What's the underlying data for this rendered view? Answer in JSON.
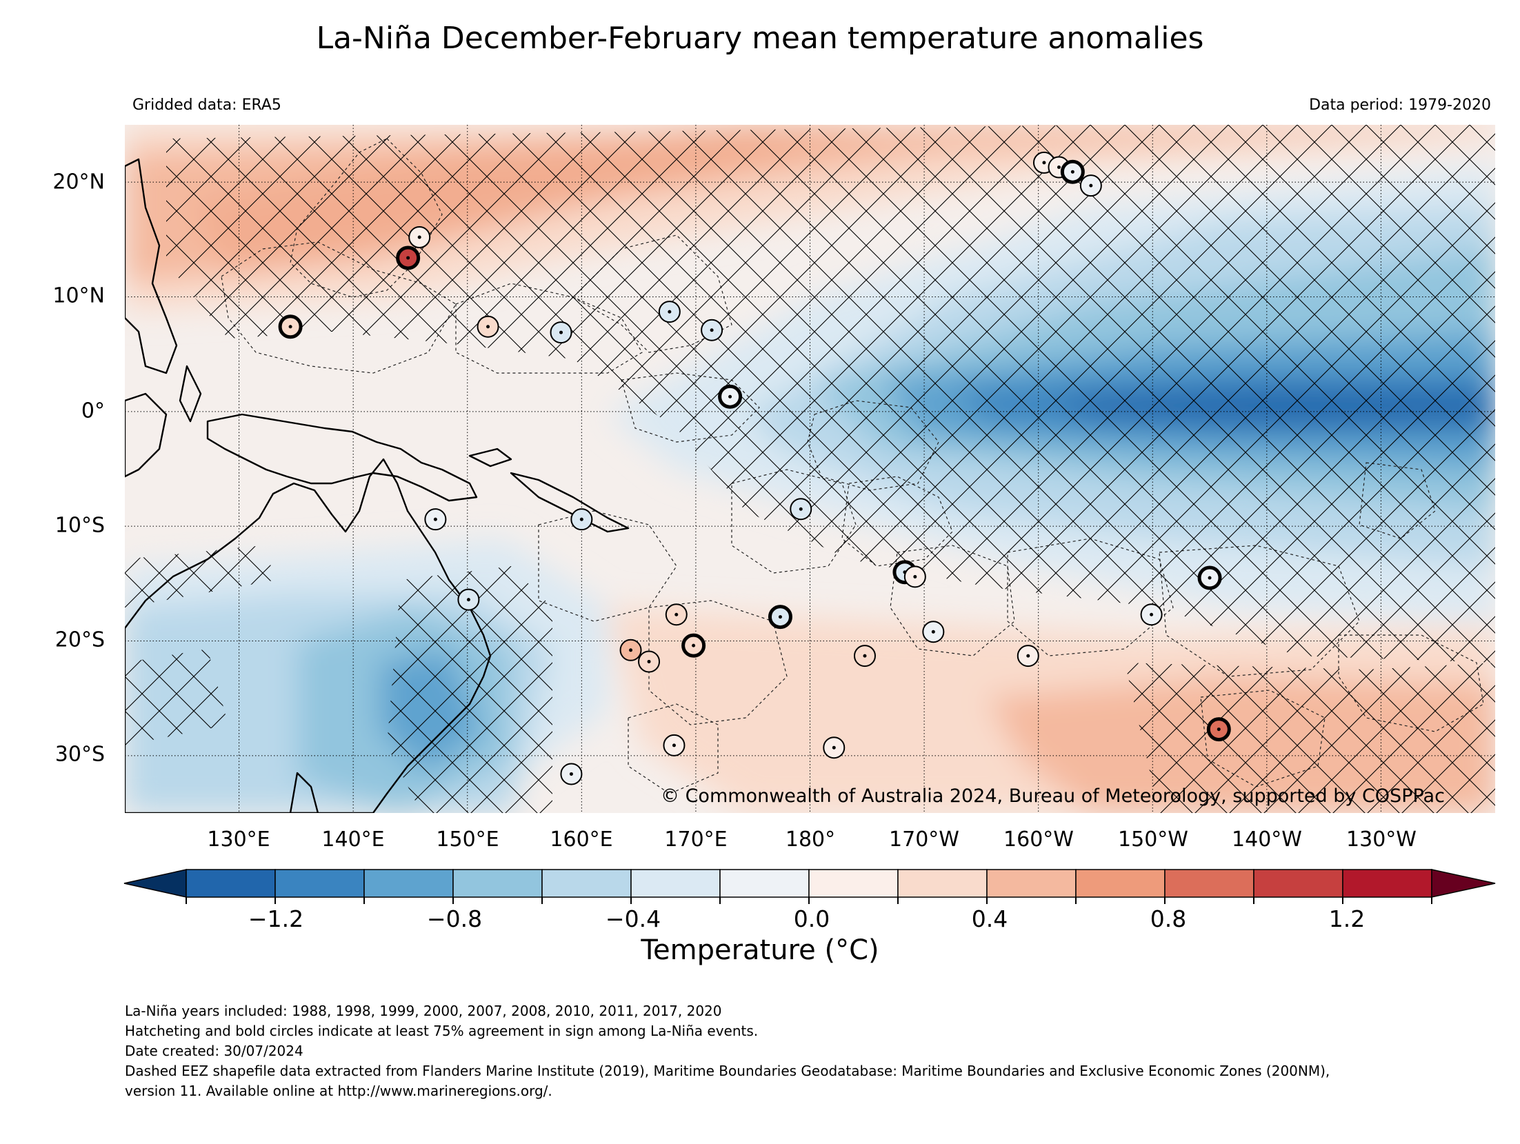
{
  "title": "La-Niña December-February mean temperature anomalies",
  "gridded_data": "Gridded data: ERA5",
  "data_period": "Data period: 1979-2020",
  "copyright": "© Commonwealth of Australia 2024, Bureau of Meteorology, supported by COSPPac",
  "lat_labels": [
    "20°N",
    "10°N",
    "0°",
    "10°S",
    "20°S",
    "30°S"
  ],
  "lon_labels": [
    "130°E",
    "140°E",
    "150°E",
    "160°E",
    "170°E",
    "180°",
    "170°W",
    "160°W",
    "150°W",
    "140°W",
    "130°W"
  ],
  "colorbar": {
    "title": "Temperature (°C)",
    "tick_labels": [
      "−1.2",
      "−0.8",
      "−0.4",
      "0.0",
      "0.4",
      "0.8",
      "1.2"
    ],
    "levels": [
      -1.4,
      -1.2,
      -1.0,
      -0.8,
      -0.6,
      -0.4,
      -0.2,
      0.0,
      0.2,
      0.4,
      0.6,
      0.8,
      1.0,
      1.2,
      1.4
    ],
    "colors": [
      "#053061",
      "#2166ac",
      "#3a84c0",
      "#5ea3cf",
      "#92c5de",
      "#b9d8ea",
      "#dbe9f3",
      "#eef2f6",
      "#fbefea",
      "#f9dbcc",
      "#f4b99f",
      "#ee9b7b",
      "#dc6e5a",
      "#c6403f",
      "#b2182b",
      "#67001f"
    ]
  },
  "map": {
    "region": {
      "lon_min": 120,
      "lon_max": 240,
      "lat_min": -35,
      "lat_max": 25
    },
    "colors": {
      "land_outline": "#000000",
      "hatching": "#000000",
      "gridline": "#000000"
    },
    "stations": [
      {
        "lon": 145.8,
        "lat": 15.2,
        "anom": 0.1,
        "bold": false
      },
      {
        "lon": 144.8,
        "lat": 13.4,
        "anom": 1.0,
        "bold": true
      },
      {
        "lon": 134.5,
        "lat": 7.4,
        "anom": 0.3,
        "bold": true
      },
      {
        "lon": 151.8,
        "lat": 7.4,
        "anom": 0.3,
        "bold": false
      },
      {
        "lon": 158.2,
        "lat": 6.9,
        "anom": -0.3,
        "bold": false
      },
      {
        "lon": 167.7,
        "lat": 8.7,
        "anom": -0.4,
        "bold": false
      },
      {
        "lon": 171.4,
        "lat": 7.1,
        "anom": -0.3,
        "bold": false
      },
      {
        "lon": 173.0,
        "lat": 1.3,
        "anom": -0.1,
        "bold": true
      },
      {
        "lon": 147.2,
        "lat": -9.4,
        "anom": -0.2,
        "bold": false
      },
      {
        "lon": 160.0,
        "lat": -9.4,
        "anom": -0.4,
        "bold": false
      },
      {
        "lon": 179.2,
        "lat": -8.5,
        "anom": -0.3,
        "bold": false
      },
      {
        "lon": 150.1,
        "lat": -16.4,
        "anom": -0.3,
        "bold": false
      },
      {
        "lon": 168.3,
        "lat": -17.7,
        "anom": 0.2,
        "bold": false
      },
      {
        "lon": 177.4,
        "lat": -17.9,
        "anom": -0.3,
        "bold": true
      },
      {
        "lon": 188.3,
        "lat": -14.0,
        "anom": -0.3,
        "bold": true
      },
      {
        "lon": 189.2,
        "lat": -14.4,
        "anom": 0.1,
        "bold": false
      },
      {
        "lon": 164.3,
        "lat": -20.8,
        "anom": 0.4,
        "bold": false
      },
      {
        "lon": 165.9,
        "lat": -21.8,
        "anom": 0.3,
        "bold": false
      },
      {
        "lon": 169.8,
        "lat": -20.4,
        "anom": 0.3,
        "bold": true
      },
      {
        "lon": 184.8,
        "lat": -21.3,
        "anom": 0.3,
        "bold": false
      },
      {
        "lon": 190.8,
        "lat": -19.2,
        "anom": -0.1,
        "bold": false
      },
      {
        "lon": 199.1,
        "lat": -21.3,
        "anom": 0.0,
        "bold": false
      },
      {
        "lon": 209.9,
        "lat": -17.7,
        "anom": -0.1,
        "bold": false
      },
      {
        "lon": 215.0,
        "lat": -14.5,
        "anom": -0.2,
        "bold": true
      },
      {
        "lon": 215.8,
        "lat": -27.7,
        "anom": 0.8,
        "bold": true
      },
      {
        "lon": 168.1,
        "lat": -29.1,
        "anom": 0.1,
        "bold": false
      },
      {
        "lon": 182.1,
        "lat": -29.3,
        "anom": 0.1,
        "bold": false
      },
      {
        "lon": 159.1,
        "lat": -31.6,
        "anom": -0.1,
        "bold": false
      },
      {
        "lon": 200.5,
        "lat": 21.7,
        "anom": 0.1,
        "bold": false
      },
      {
        "lon": 201.8,
        "lat": 21.3,
        "anom": 0.1,
        "bold": false
      },
      {
        "lon": 203.0,
        "lat": 20.9,
        "anom": -0.1,
        "bold": true
      },
      {
        "lon": 204.6,
        "lat": 19.7,
        "anom": -0.2,
        "bold": false
      }
    ]
  },
  "footnotes": [
    "La-Niña years included: 1988, 1998, 1999, 2000, 2007, 2008, 2010, 2011, 2017, 2020",
    "Hatcheting and bold circles indicate at least 75% agreement in sign among La-Niña events.",
    "Date created: 30/07/2024",
    "Dashed EEZ shapefile data extracted from Flanders Marine Institute (2019), Maritime Boundaries Geodatabase: Maritime Boundaries and Exclusive Economic Zones (200NM),",
    "version 11. Available online at http://www.marineregions.org/."
  ]
}
